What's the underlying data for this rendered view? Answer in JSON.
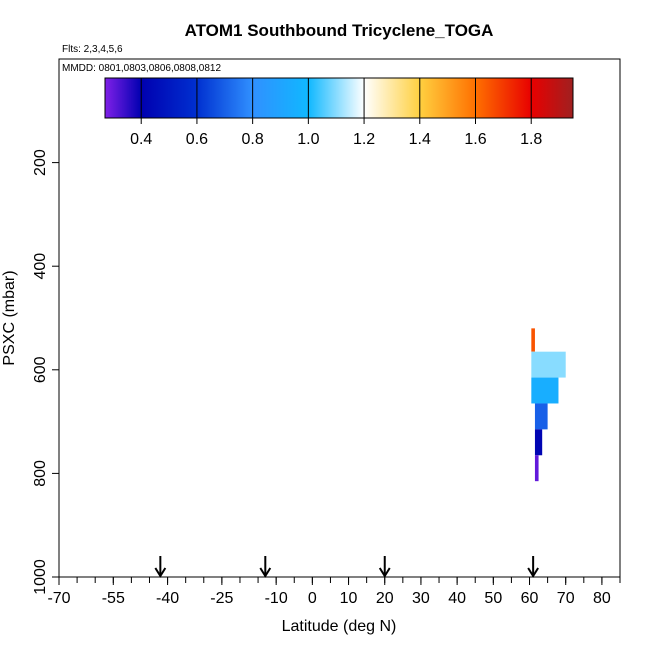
{
  "chart_data": {
    "type": "bar",
    "title": "ATOM1 Southbound Tricyclene_TOGA",
    "flights_note": "Flts: 2,3,4,5,6",
    "dates_note": "MMDD: 0801,0803,0806,0808,0812",
    "xlabel": "Latitude (deg N)",
    "ylabel": "PSXC (mbar)",
    "xlim": [
      -70,
      85
    ],
    "ylim": [
      1000,
      0
    ],
    "x_ticks": [
      -70,
      -55,
      -40,
      -25,
      -10,
      0,
      10,
      20,
      30,
      40,
      50,
      60,
      70,
      80
    ],
    "x_minor_step": 5,
    "y_ticks": [
      200,
      400,
      600,
      800,
      1000
    ],
    "colorbar": {
      "min": 0.27,
      "max": 1.95,
      "ticks": [
        0.4,
        0.6,
        0.8,
        1.0,
        1.2,
        1.4,
        1.6,
        1.8
      ],
      "tick_labels": [
        "0.4",
        "0.6",
        "0.8",
        "1.0",
        "1.2",
        "1.4",
        "1.6",
        "1.8"
      ],
      "stops": [
        {
          "v": 0.27,
          "color": "#8020e8"
        },
        {
          "v": 0.4,
          "color": "#0000b0"
        },
        {
          "v": 0.6,
          "color": "#0030d0"
        },
        {
          "v": 0.8,
          "color": "#3090ff"
        },
        {
          "v": 1.0,
          "color": "#10b8ff"
        },
        {
          "v": 1.2,
          "color": "#ffffff"
        },
        {
          "v": 1.4,
          "color": "#ffd040"
        },
        {
          "v": 1.6,
          "color": "#ff7000"
        },
        {
          "v": 1.8,
          "color": "#e80000"
        },
        {
          "v": 1.95,
          "color": "#a02020"
        }
      ]
    },
    "flight_latitudes": [
      -42,
      -13,
      20,
      61
    ],
    "bars": [
      {
        "lat_min": 60.5,
        "lat_max": 61.5,
        "p_top": 520,
        "p_bottom": 565,
        "value": 1.65
      },
      {
        "lat_min": 60.5,
        "lat_max": 70,
        "p_top": 565,
        "p_bottom": 615,
        "value": 1.1
      },
      {
        "lat_min": 60.5,
        "lat_max": 68,
        "p_top": 615,
        "p_bottom": 665,
        "value": 0.95
      },
      {
        "lat_min": 61.5,
        "lat_max": 65,
        "p_top": 665,
        "p_bottom": 715,
        "value": 0.7
      },
      {
        "lat_min": 61.5,
        "lat_max": 63.5,
        "p_top": 715,
        "p_bottom": 765,
        "value": 0.42
      },
      {
        "lat_min": 61.5,
        "lat_max": 62.5,
        "p_top": 765,
        "p_bottom": 815,
        "value": 0.3
      }
    ]
  }
}
